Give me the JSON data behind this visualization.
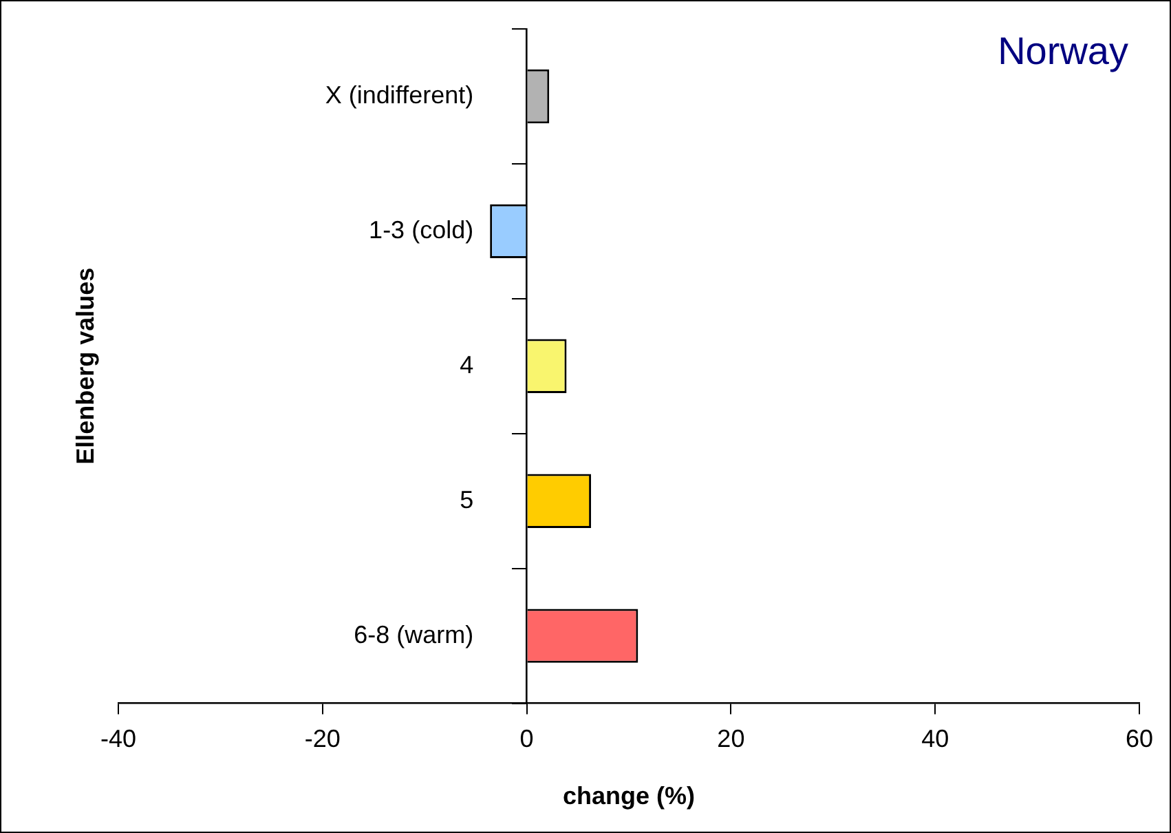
{
  "chart_data": {
    "type": "bar",
    "orientation": "horizontal",
    "title": "Norway",
    "xlabel": "change (%)",
    "ylabel": "Ellenberg values",
    "categories": [
      "X (indifferent)",
      "1-3 (cold)",
      "4",
      "5",
      "6-8 (warm)"
    ],
    "values": [
      2.2,
      -3.6,
      3.9,
      6.3,
      10.9
    ],
    "colors": [
      "#b2b2b2",
      "#99ccff",
      "#f9f56e",
      "#ffcc00",
      "#ff6666"
    ],
    "xlim": [
      -40,
      60
    ],
    "xticks": [
      -40,
      -20,
      0,
      20,
      40,
      60
    ],
    "grid": false,
    "legend": false
  }
}
